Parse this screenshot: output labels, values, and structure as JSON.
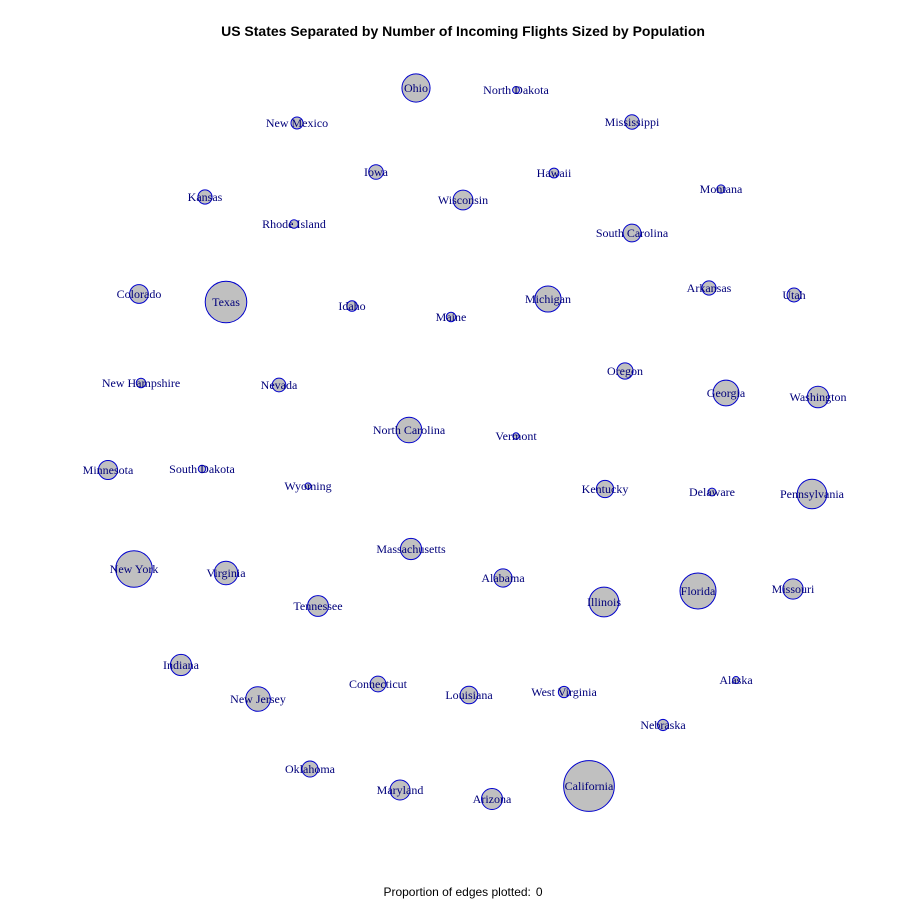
{
  "title": "US States Separated by Number of Incoming Flights Sized by Population",
  "footer": {
    "label": "Proportion of edges plotted:",
    "value": "0"
  },
  "colors": {
    "node_fill": "#c0c0c0",
    "node_stroke": "#0000cc",
    "label_text": "#00007a"
  },
  "nodes": [
    {
      "name": "Ohio",
      "population_millions": 11.5
    },
    {
      "name": "North Dakota",
      "population_millions": 0.7
    },
    {
      "name": "New Mexico",
      "population_millions": 2.1
    },
    {
      "name": "Mississippi",
      "population_millions": 3.0
    },
    {
      "name": "Iowa",
      "population_millions": 3.1
    },
    {
      "name": "Hawaii",
      "population_millions": 1.4
    },
    {
      "name": "Kansas",
      "population_millions": 2.9
    },
    {
      "name": "Wisconsin",
      "population_millions": 5.7
    },
    {
      "name": "Montana",
      "population_millions": 1.0
    },
    {
      "name": "Rhode Island",
      "population_millions": 1.05
    },
    {
      "name": "South Carolina",
      "population_millions": 4.6
    },
    {
      "name": "Colorado",
      "population_millions": 5.1
    },
    {
      "name": "Texas",
      "population_millions": 25.1
    },
    {
      "name": "Idaho",
      "population_millions": 1.6
    },
    {
      "name": "Michigan",
      "population_millions": 9.9
    },
    {
      "name": "Arkansas",
      "population_millions": 2.9
    },
    {
      "name": "Utah",
      "population_millions": 2.8
    },
    {
      "name": "Maine",
      "population_millions": 1.3
    },
    {
      "name": "Oregon",
      "population_millions": 3.8
    },
    {
      "name": "New Hampshire",
      "population_millions": 1.3
    },
    {
      "name": "Nevada",
      "population_millions": 2.7
    },
    {
      "name": "Georgia",
      "population_millions": 9.7
    },
    {
      "name": "Washington",
      "population_millions": 6.7
    },
    {
      "name": "North Carolina",
      "population_millions": 9.5
    },
    {
      "name": "Vermont",
      "population_millions": 0.6
    },
    {
      "name": "Minnesota",
      "population_millions": 5.3
    },
    {
      "name": "South Dakota",
      "population_millions": 0.8
    },
    {
      "name": "Wyoming",
      "population_millions": 0.56
    },
    {
      "name": "Kentucky",
      "population_millions": 4.3
    },
    {
      "name": "Delaware",
      "population_millions": 0.9
    },
    {
      "name": "Pennsylvania",
      "population_millions": 12.7
    },
    {
      "name": "Massachusetts",
      "population_millions": 6.5
    },
    {
      "name": "New York",
      "population_millions": 19.4
    },
    {
      "name": "Virginia",
      "population_millions": 8.0
    },
    {
      "name": "Alabama",
      "population_millions": 4.8
    },
    {
      "name": "Illinois",
      "population_millions": 12.8
    },
    {
      "name": "Florida",
      "population_millions": 18.8
    },
    {
      "name": "Missouri",
      "population_millions": 6.0
    },
    {
      "name": "Tennessee",
      "population_millions": 6.3
    },
    {
      "name": "Indiana",
      "population_millions": 6.5
    },
    {
      "name": "Alaska",
      "population_millions": 0.7
    },
    {
      "name": "Connecticut",
      "population_millions": 3.6
    },
    {
      "name": "New Jersey",
      "population_millions": 8.8
    },
    {
      "name": "Louisiana",
      "population_millions": 4.5
    },
    {
      "name": "West Virginia",
      "population_millions": 1.85
    },
    {
      "name": "Nebraska",
      "population_millions": 1.8
    },
    {
      "name": "Oklahoma",
      "population_millions": 3.75
    },
    {
      "name": "Maryland",
      "population_millions": 5.8
    },
    {
      "name": "Arizona",
      "population_millions": 6.4
    },
    {
      "name": "California",
      "population_millions": 37.3
    }
  ]
}
